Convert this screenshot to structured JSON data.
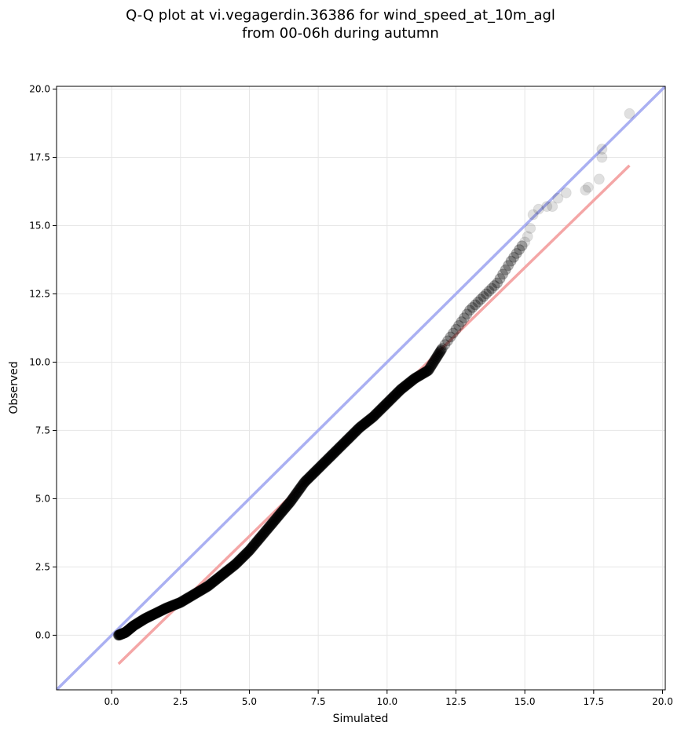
{
  "chart_data": {
    "type": "scatter",
    "title_line1": "Q-Q plot at vi.vegagerdin.36386 for wind_speed_at_10m_agl",
    "title_line2": "from 00-06h during autumn",
    "xlabel": "Simulated",
    "ylabel": "Observed",
    "xlim": [
      -2.0,
      20.1
    ],
    "ylim": [
      -2.0,
      20.1
    ],
    "x_ticks": [
      0.0,
      2.5,
      5.0,
      7.5,
      10.0,
      12.5,
      15.0,
      17.5,
      20.0
    ],
    "y_ticks": [
      0.0,
      2.5,
      5.0,
      7.5,
      10.0,
      12.5,
      15.0,
      17.5,
      20.0
    ],
    "x_tick_labels": [
      "0.0",
      "2.5",
      "5.0",
      "7.5",
      "10.0",
      "12.5",
      "15.0",
      "17.5",
      "20.0"
    ],
    "y_tick_labels": [
      "0.0",
      "2.5",
      "5.0",
      "7.5",
      "10.0",
      "12.5",
      "15.0",
      "17.5",
      "20.0"
    ],
    "grid": true,
    "reference_line": {
      "color": "#aab0f2",
      "x": [
        -2.0,
        20.1
      ],
      "y": [
        -2.0,
        20.1
      ]
    },
    "fit_line": {
      "color": "#f4a6a6",
      "x": [
        0.25,
        18.8
      ],
      "y": [
        -1.05,
        17.2
      ]
    },
    "point_color": "#000000",
    "quantile_path": [
      [
        0.25,
        0.0
      ],
      [
        0.5,
        0.1
      ],
      [
        0.8,
        0.35
      ],
      [
        1.2,
        0.6
      ],
      [
        1.6,
        0.8
      ],
      [
        2.0,
        1.0
      ],
      [
        2.5,
        1.2
      ],
      [
        3.0,
        1.5
      ],
      [
        3.5,
        1.8
      ],
      [
        4.0,
        2.2
      ],
      [
        4.5,
        2.6
      ],
      [
        5.0,
        3.1
      ],
      [
        5.5,
        3.7
      ],
      [
        6.0,
        4.3
      ],
      [
        6.5,
        4.9
      ],
      [
        7.0,
        5.6
      ],
      [
        7.5,
        6.1
      ],
      [
        8.0,
        6.6
      ],
      [
        8.5,
        7.1
      ],
      [
        9.0,
        7.6
      ],
      [
        9.5,
        8.0
      ],
      [
        10.0,
        8.5
      ],
      [
        10.5,
        9.0
      ],
      [
        11.0,
        9.4
      ],
      [
        11.5,
        9.7
      ],
      [
        12.0,
        10.5
      ],
      [
        12.5,
        11.2
      ],
      [
        13.0,
        11.9
      ],
      [
        13.5,
        12.4
      ],
      [
        14.0,
        12.9
      ],
      [
        14.5,
        13.7
      ],
      [
        15.0,
        14.4
      ]
    ],
    "tail_points": [
      [
        15.1,
        14.6
      ],
      [
        15.2,
        14.9
      ],
      [
        15.3,
        15.4
      ],
      [
        15.5,
        15.6
      ],
      [
        15.8,
        15.7
      ],
      [
        16.0,
        15.7
      ],
      [
        16.2,
        16.0
      ],
      [
        16.5,
        16.2
      ],
      [
        17.2,
        16.3
      ],
      [
        17.3,
        16.4
      ],
      [
        17.7,
        16.7
      ],
      [
        17.8,
        17.5
      ],
      [
        17.8,
        17.8
      ],
      [
        18.8,
        19.1
      ]
    ]
  }
}
